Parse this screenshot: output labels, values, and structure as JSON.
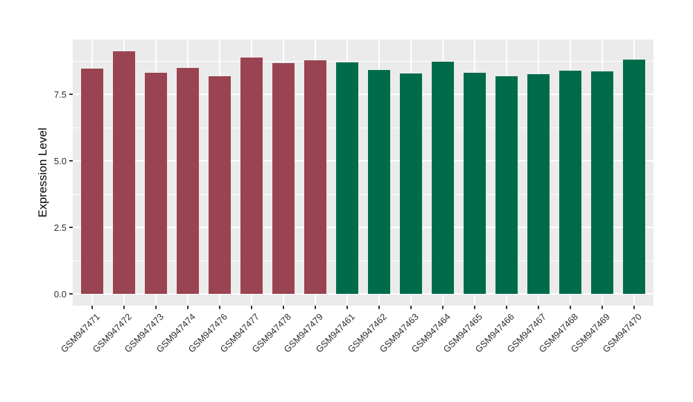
{
  "chart_data": {
    "type": "bar",
    "title": "",
    "xlabel": "",
    "ylabel": "Expression Level",
    "ylim": [
      0,
      9.56
    ],
    "y_ticks": [
      0.0,
      2.5,
      5.0,
      7.5
    ],
    "y_tick_labels": [
      "0.0",
      "2.5",
      "5.0",
      "7.5"
    ],
    "y_minor_ticks": [
      1.25,
      3.75,
      6.25,
      8.75
    ],
    "grid": "on",
    "legend": "none",
    "categories": [
      "GSM947471",
      "GSM947472",
      "GSM947473",
      "GSM947474",
      "GSM947476",
      "GSM947477",
      "GSM947478",
      "GSM947479",
      "GSM947461",
      "GSM947462",
      "GSM947463",
      "GSM947464",
      "GSM947465",
      "GSM947466",
      "GSM947467",
      "GSM947468",
      "GSM947469",
      "GSM947470"
    ],
    "values": [
      8.47,
      9.12,
      8.32,
      8.5,
      8.18,
      8.89,
      8.67,
      8.78,
      8.71,
      8.42,
      8.28,
      8.73,
      8.32,
      8.19,
      8.26,
      8.39,
      8.36,
      8.81
    ],
    "bar_colors": [
      "#9A4352",
      "#9A4352",
      "#9A4352",
      "#9A4352",
      "#9A4352",
      "#9A4352",
      "#9A4352",
      "#9A4352",
      "#006B4B",
      "#006B4B",
      "#006B4B",
      "#006B4B",
      "#006B4B",
      "#006B4B",
      "#006B4B",
      "#006B4B",
      "#006B4B",
      "#006B4B"
    ],
    "group_colors": {
      "red_group": "#9A4352",
      "green_group": "#006B4B"
    }
  },
  "style": {
    "panel_background": "#EBEBEB",
    "grid_color": "#FFFFFF",
    "tick_color": "#333333",
    "text_color": "#2b2b2b",
    "figure_background": "#FFFFFF"
  }
}
